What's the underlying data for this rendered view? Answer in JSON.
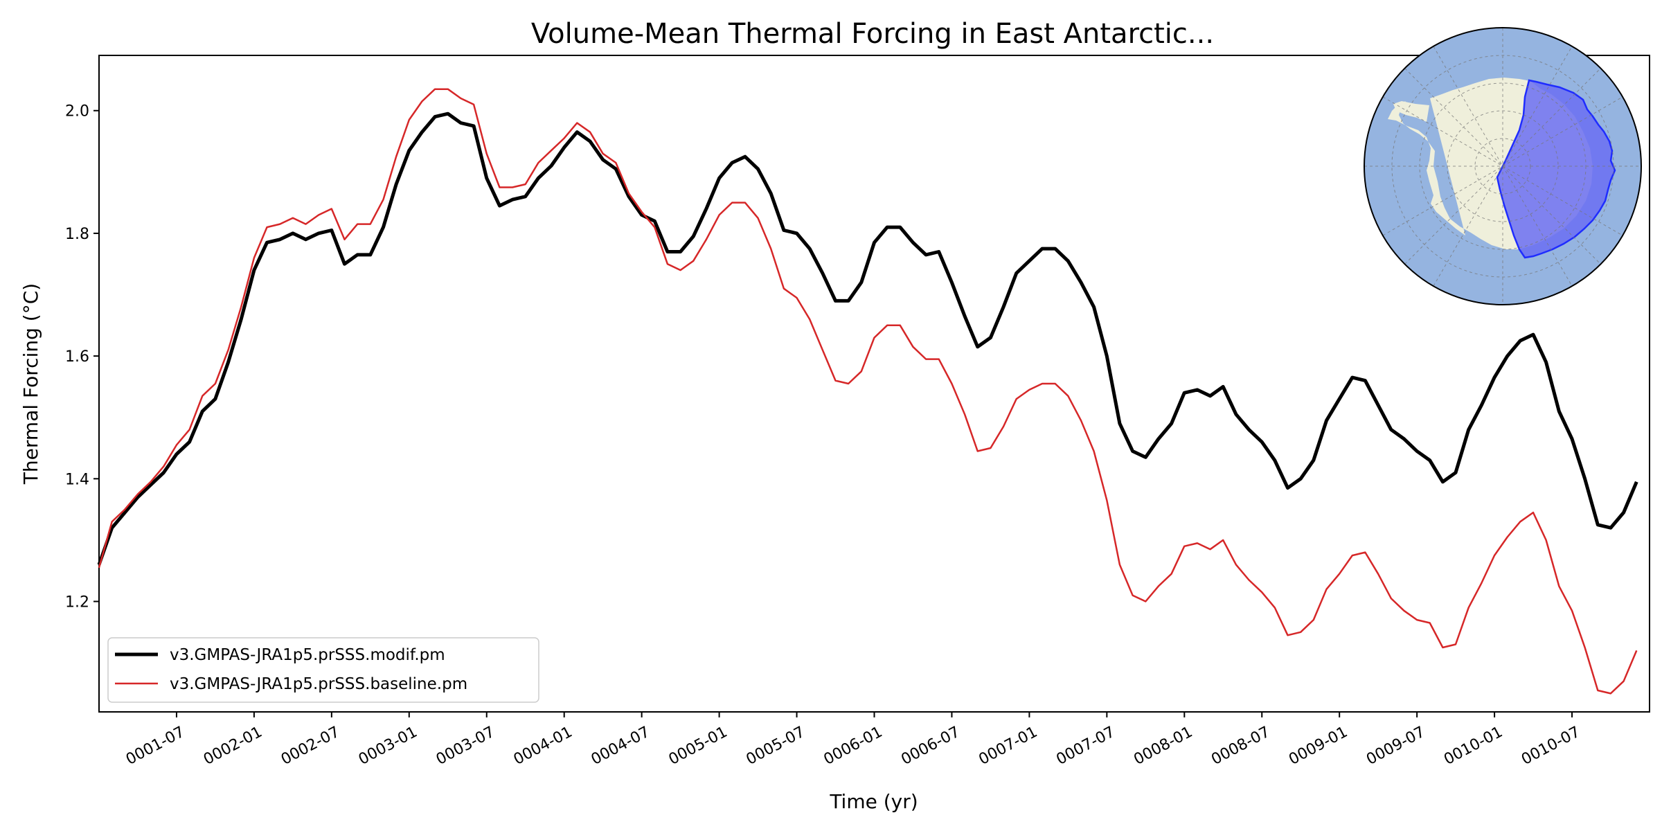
{
  "chart_data": {
    "type": "line",
    "title": "Volume-Mean Thermal Forcing in East Antarctic...",
    "xlabel": "Time (yr)",
    "ylabel": "Thermal Forcing ($^\\circ$C)",
    "ylabel_display": "Thermal Forcing (°C)",
    "xlim": [
      0.0,
      10.0
    ],
    "ylim": [
      1.02,
      2.09
    ],
    "x_unit": "years since 0001-01 (monthly)",
    "yticks": [
      {
        "value": 1.2,
        "label": "1.2"
      },
      {
        "value": 1.4,
        "label": "1.4"
      },
      {
        "value": 1.6,
        "label": "1.6"
      },
      {
        "value": 1.8,
        "label": "1.8"
      },
      {
        "value": 2.0,
        "label": "2.0"
      }
    ],
    "xticks": [
      {
        "value": 0.5,
        "label": "0001-07"
      },
      {
        "value": 1.0,
        "label": "0002-01"
      },
      {
        "value": 1.5,
        "label": "0002-07"
      },
      {
        "value": 2.0,
        "label": "0003-01"
      },
      {
        "value": 2.5,
        "label": "0003-07"
      },
      {
        "value": 3.0,
        "label": "0004-01"
      },
      {
        "value": 3.5,
        "label": "0004-07"
      },
      {
        "value": 4.0,
        "label": "0005-01"
      },
      {
        "value": 4.5,
        "label": "0005-07"
      },
      {
        "value": 5.0,
        "label": "0006-01"
      },
      {
        "value": 5.5,
        "label": "0006-07"
      },
      {
        "value": 6.0,
        "label": "0007-01"
      },
      {
        "value": 6.5,
        "label": "0007-07"
      },
      {
        "value": 7.0,
        "label": "0008-01"
      },
      {
        "value": 7.5,
        "label": "0008-07"
      },
      {
        "value": 8.0,
        "label": "0009-01"
      },
      {
        "value": 8.5,
        "label": "0009-07"
      },
      {
        "value": 9.0,
        "label": "0010-01"
      },
      {
        "value": 9.5,
        "label": "0010-07"
      }
    ],
    "grid": false,
    "legend_position": "lower-left",
    "series": [
      {
        "name": "v3.GMPAS-JRA1p5.prSSS.modif.pm",
        "color": "#000000",
        "style": "thick",
        "x_start": 0.0,
        "x_step": 0.08333,
        "values": [
          1.26,
          1.32,
          1.345,
          1.37,
          1.39,
          1.41,
          1.44,
          1.46,
          1.51,
          1.53,
          1.59,
          1.66,
          1.74,
          1.785,
          1.79,
          1.8,
          1.79,
          1.8,
          1.805,
          1.75,
          1.765,
          1.765,
          1.81,
          1.88,
          1.935,
          1.965,
          1.99,
          1.995,
          1.98,
          1.975,
          1.89,
          1.845,
          1.855,
          1.86,
          1.89,
          1.91,
          1.94,
          1.965,
          1.95,
          1.92,
          1.905,
          1.86,
          1.83,
          1.82,
          1.77,
          1.77,
          1.795,
          1.84,
          1.89,
          1.915,
          1.925,
          1.905,
          1.865,
          1.805,
          1.8,
          1.775,
          1.735,
          1.69,
          1.69,
          1.72,
          1.785,
          1.81,
          1.81,
          1.785,
          1.765,
          1.77,
          1.72,
          1.665,
          1.615,
          1.63,
          1.68,
          1.735,
          1.755,
          1.775,
          1.775,
          1.755,
          1.72,
          1.68,
          1.6,
          1.49,
          1.445,
          1.435,
          1.465,
          1.49,
          1.54,
          1.545,
          1.535,
          1.55,
          1.505,
          1.48,
          1.46,
          1.43,
          1.385,
          1.4,
          1.43,
          1.495,
          1.53,
          1.565,
          1.56,
          1.52,
          1.48,
          1.465,
          1.445,
          1.43,
          1.395,
          1.41,
          1.48,
          1.52,
          1.565,
          1.6,
          1.625,
          1.635,
          1.59,
          1.51,
          1.465,
          1.4,
          1.325,
          1.32,
          1.345,
          1.395
        ]
      },
      {
        "name": "v3.GMPAS-JRA1p5.prSSS.baseline.pm",
        "color": "#d62728",
        "style": "thin",
        "x_start": 0.0,
        "x_step": 0.08333,
        "values": [
          1.255,
          1.33,
          1.35,
          1.375,
          1.395,
          1.42,
          1.455,
          1.48,
          1.535,
          1.555,
          1.61,
          1.68,
          1.76,
          1.81,
          1.815,
          1.825,
          1.815,
          1.83,
          1.84,
          1.79,
          1.815,
          1.815,
          1.855,
          1.925,
          1.985,
          2.015,
          2.035,
          2.035,
          2.02,
          2.01,
          1.93,
          1.875,
          1.875,
          1.88,
          1.915,
          1.935,
          1.955,
          1.98,
          1.965,
          1.93,
          1.915,
          1.865,
          1.835,
          1.81,
          1.75,
          1.74,
          1.755,
          1.79,
          1.83,
          1.85,
          1.85,
          1.825,
          1.775,
          1.71,
          1.695,
          1.66,
          1.61,
          1.56,
          1.555,
          1.575,
          1.63,
          1.65,
          1.65,
          1.615,
          1.595,
          1.595,
          1.555,
          1.505,
          1.445,
          1.45,
          1.485,
          1.53,
          1.545,
          1.555,
          1.555,
          1.535,
          1.495,
          1.445,
          1.365,
          1.26,
          1.21,
          1.2,
          1.225,
          1.245,
          1.29,
          1.295,
          1.285,
          1.3,
          1.26,
          1.235,
          1.215,
          1.19,
          1.145,
          1.15,
          1.17,
          1.22,
          1.245,
          1.275,
          1.28,
          1.245,
          1.205,
          1.185,
          1.17,
          1.165,
          1.125,
          1.13,
          1.19,
          1.23,
          1.275,
          1.305,
          1.33,
          1.345,
          1.3,
          1.225,
          1.185,
          1.125,
          1.055,
          1.05,
          1.07,
          1.12
        ]
      }
    ]
  },
  "inset_map": {
    "projection": "south-polar-stereographic",
    "ocean_color": "#95b4e0",
    "land_color": "#efefdb",
    "region_fill": "#6b6ff2",
    "region_edge": "#1f2cff"
  }
}
